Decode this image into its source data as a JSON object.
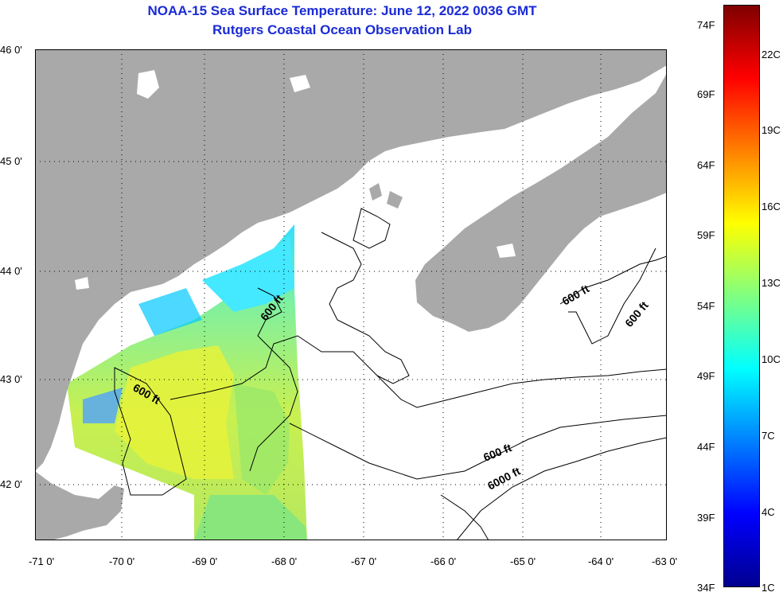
{
  "title": {
    "line1": "NOAA-15 Sea Surface Temperature:  June 12, 2022 0036 GMT",
    "line2": "Rutgers Coastal Ocean Observation Lab"
  },
  "map": {
    "latitude_ticks": [
      "46 0'",
      "45 0'",
      "44 0'",
      "43 0'",
      "42 0'"
    ],
    "longitude_ticks": [
      "-71 0'",
      "-70 0'",
      "-69 0'",
      "-68 0'",
      "-67 0'",
      "-66 0'",
      "-65 0'",
      "-64 0'",
      "-63 0'"
    ],
    "contour_labels": [
      "600 ft",
      "600 ft",
      "600 ft",
      "600 ft",
      "600 ft",
      "6000 ft"
    ],
    "colors": {
      "land": "#a9a9a9",
      "no_data": "#ffffff",
      "contour": "#000000",
      "grid": "#000000"
    }
  },
  "colorbar": {
    "fahrenheit_labels": [
      "74F",
      "69F",
      "64F",
      "59F",
      "54F",
      "49F",
      "44F",
      "39F",
      "34F"
    ],
    "celsius_labels": [
      "22C",
      "19C",
      "16C",
      "13C",
      "10C",
      "7C",
      "4C",
      "1C"
    ],
    "gradient_colors": [
      "#7f0000",
      "#ff0000",
      "#ff8000",
      "#ffff00",
      "#80ff80",
      "#00ffff",
      "#0080ff",
      "#0000ff",
      "#00008f"
    ]
  }
}
